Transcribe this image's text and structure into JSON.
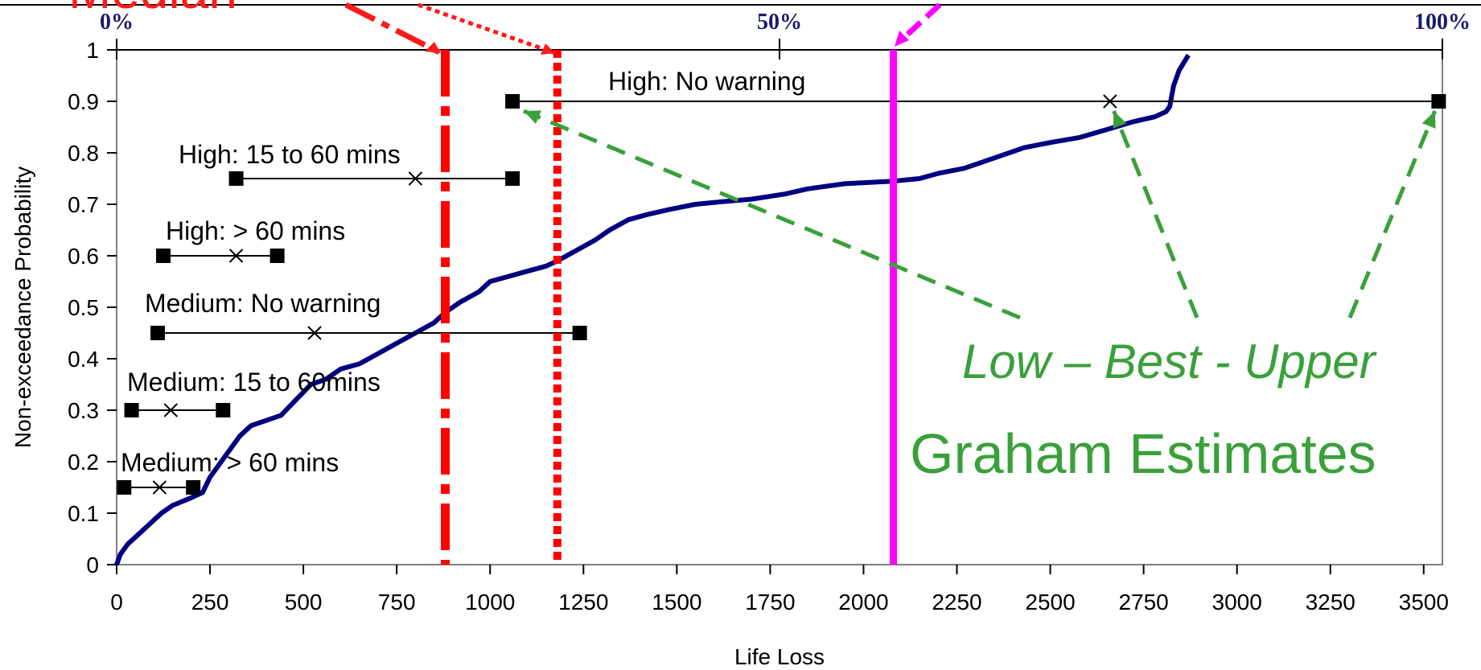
{
  "chart_data": {
    "type": "line",
    "xlabel": "Life Loss",
    "ylabel": "Non-exceedance Probability",
    "xlim": [
      0,
      3550
    ],
    "ylim": [
      0,
      1
    ],
    "x_ticks": [
      "0",
      "250",
      "500",
      "750",
      "1000",
      "1250",
      "1500",
      "1750",
      "2000",
      "2250",
      "2500",
      "2750",
      "3000",
      "3250",
      "3500"
    ],
    "y_ticks": [
      "0",
      "0.1",
      "0.2",
      "0.3",
      "0.4",
      "0.5",
      "0.6",
      "0.7",
      "0.8",
      "0.9",
      "1"
    ],
    "grid": false,
    "top_axis": {
      "labels": [
        {
          "text": "0%",
          "x": 0
        },
        {
          "text": "50%",
          "x": 1775
        },
        {
          "text": "100%",
          "x": 3550
        }
      ]
    },
    "cdf_series": {
      "color": "#000080",
      "points": [
        [
          0,
          0
        ],
        [
          10,
          0.02
        ],
        [
          30,
          0.04
        ],
        [
          60,
          0.06
        ],
        [
          90,
          0.08
        ],
        [
          120,
          0.1
        ],
        [
          150,
          0.115
        ],
        [
          200,
          0.13
        ],
        [
          230,
          0.14
        ],
        [
          250,
          0.17
        ],
        [
          290,
          0.21
        ],
        [
          330,
          0.25
        ],
        [
          360,
          0.27
        ],
        [
          400,
          0.28
        ],
        [
          440,
          0.29
        ],
        [
          480,
          0.32
        ],
        [
          520,
          0.35
        ],
        [
          560,
          0.36
        ],
        [
          600,
          0.38
        ],
        [
          650,
          0.39
        ],
        [
          700,
          0.41
        ],
        [
          750,
          0.43
        ],
        [
          800,
          0.45
        ],
        [
          850,
          0.47
        ],
        [
          880,
          0.49
        ],
        [
          920,
          0.51
        ],
        [
          970,
          0.53
        ],
        [
          1000,
          0.55
        ],
        [
          1050,
          0.56
        ],
        [
          1100,
          0.57
        ],
        [
          1150,
          0.58
        ],
        [
          1180,
          0.59
        ],
        [
          1230,
          0.61
        ],
        [
          1280,
          0.63
        ],
        [
          1320,
          0.65
        ],
        [
          1370,
          0.67
        ],
        [
          1420,
          0.68
        ],
        [
          1480,
          0.69
        ],
        [
          1550,
          0.7
        ],
        [
          1620,
          0.705
        ],
        [
          1700,
          0.71
        ],
        [
          1790,
          0.72
        ],
        [
          1850,
          0.73
        ],
        [
          1950,
          0.74
        ],
        [
          2080,
          0.745
        ],
        [
          2150,
          0.75
        ],
        [
          2200,
          0.76
        ],
        [
          2270,
          0.77
        ],
        [
          2350,
          0.79
        ],
        [
          2430,
          0.81
        ],
        [
          2500,
          0.82
        ],
        [
          2580,
          0.83
        ],
        [
          2650,
          0.845
        ],
        [
          2720,
          0.86
        ],
        [
          2780,
          0.87
        ],
        [
          2810,
          0.88
        ],
        [
          2820,
          0.89
        ],
        [
          2830,
          0.93
        ],
        [
          2845,
          0.96
        ],
        [
          2870,
          0.99
        ]
      ]
    },
    "scenarios": [
      {
        "label": "High: No warning",
        "y": 0.9,
        "low": 1060,
        "best": 2660,
        "upper": 3540
      },
      {
        "label": "High: 15 to 60 mins",
        "y": 0.75,
        "low": 320,
        "best": 800,
        "upper": 1060
      },
      {
        "label": "High: > 60 mins",
        "y": 0.6,
        "low": 125,
        "best": 320,
        "upper": 430
      },
      {
        "label": "Medium: No warning",
        "y": 0.45,
        "low": 110,
        "best": 530,
        "upper": 1240
      },
      {
        "label": "Medium: 15 to 60mins",
        "y": 0.3,
        "low": 40,
        "best": 145,
        "upper": 285
      },
      {
        "label": "Medium: > 60 mins",
        "y": 0.15,
        "low": 20,
        "best": 115,
        "upper": 205
      }
    ],
    "reference_lines": [
      {
        "x": 880,
        "color": "#ff0000",
        "style": "dash-dot"
      },
      {
        "x": 1180,
        "color": "#ff0000",
        "style": "dotted"
      },
      {
        "x": 2080,
        "color": "#ff00ff",
        "style": "solid"
      }
    ],
    "annotations": {
      "median_label": "Median",
      "green_line1": "Low – Best - Upper",
      "green_line2": "Graham Estimates"
    }
  },
  "colors": {
    "cdf": "#000080",
    "red": "#ff1a1a",
    "magenta": "#ff00ff",
    "green": "#3aa03a"
  }
}
